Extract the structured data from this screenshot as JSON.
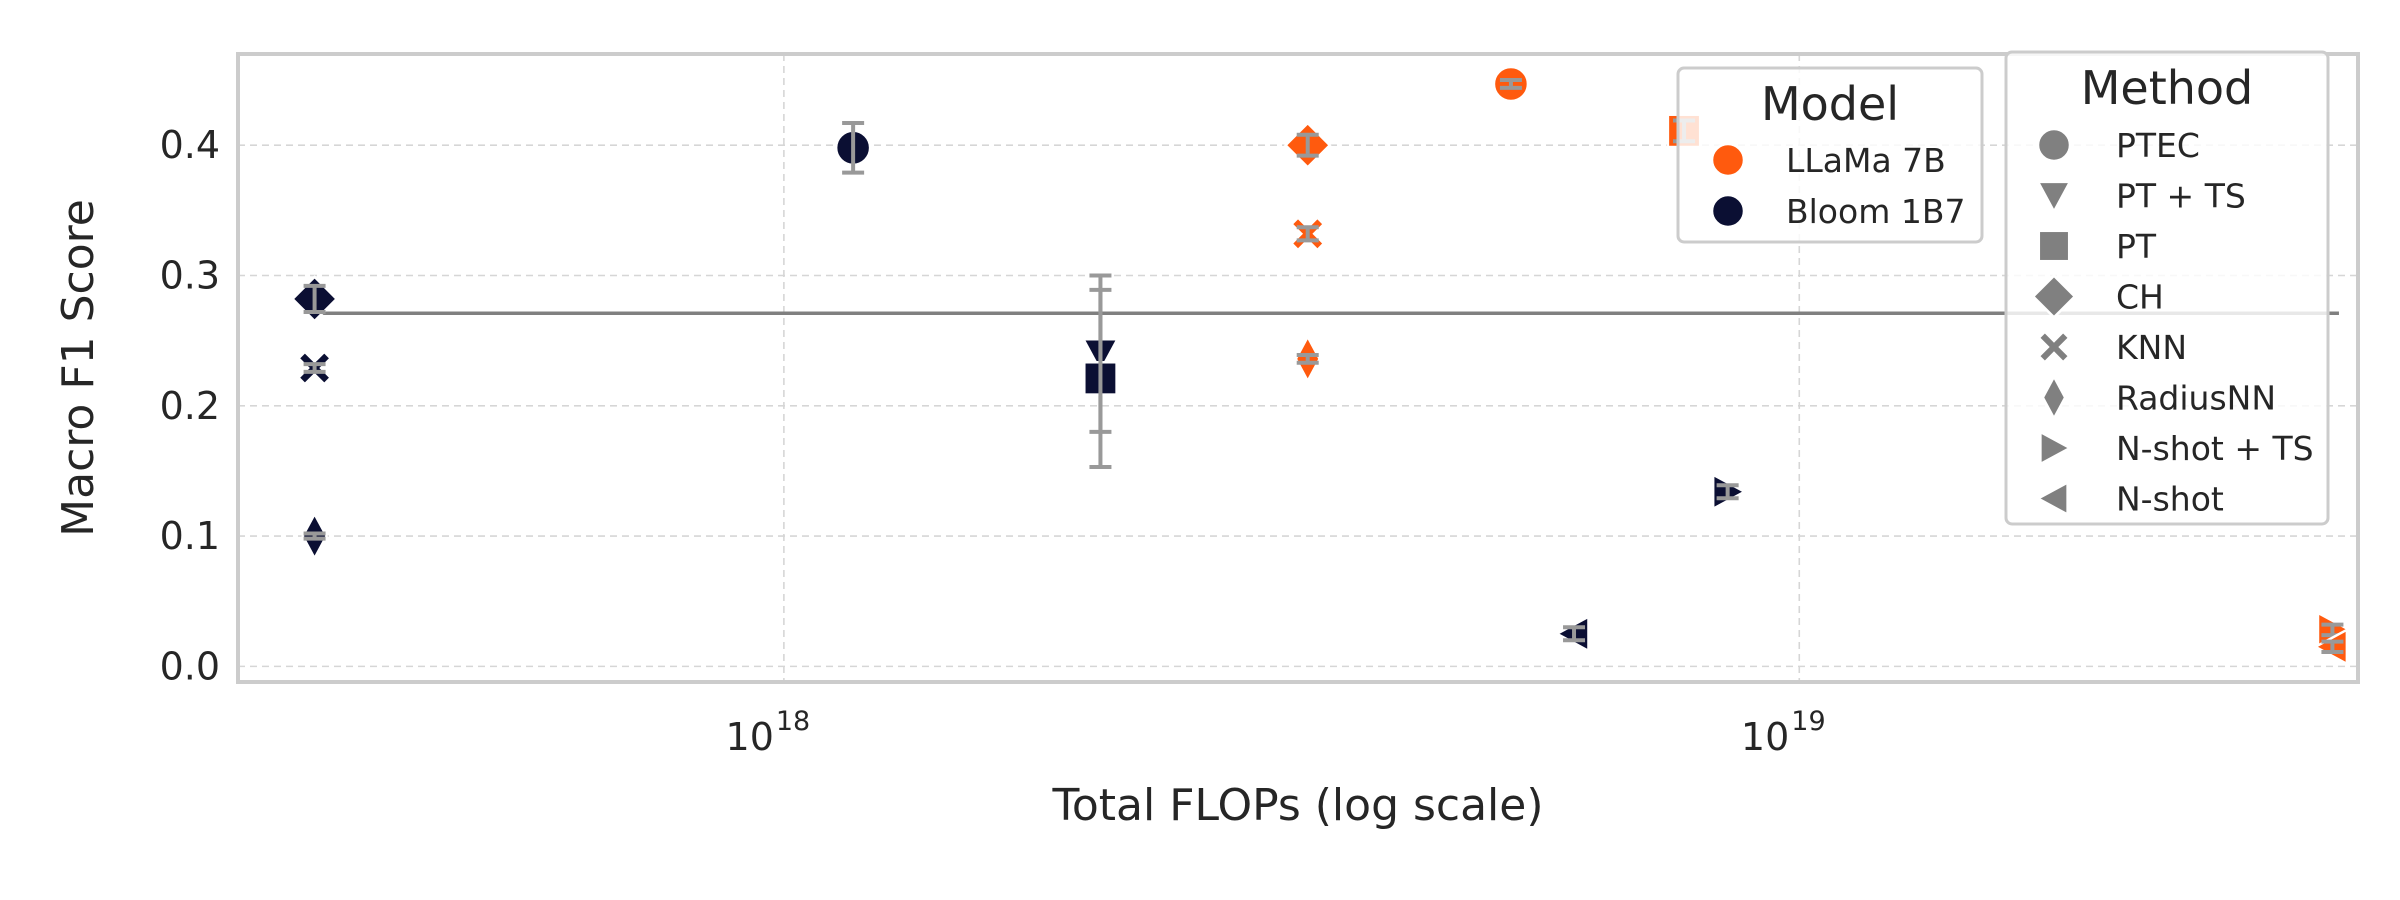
{
  "chart_data": {
    "type": "scatter",
    "title": "",
    "xlabel": "Total FLOPs (log scale)",
    "ylabel": "Macro F1 Score",
    "x_scale": "log",
    "xlim": [
      2.9e+17,
      3.55e+19
    ],
    "ylim": [
      -0.012,
      0.47
    ],
    "x_ticks": [
      {
        "value": 1e+18,
        "base": "10",
        "exp": "18"
      },
      {
        "value": 1e+19,
        "base": "10",
        "exp": "19"
      }
    ],
    "y_ticks": [
      {
        "value": 0.0,
        "label": "0.0"
      },
      {
        "value": 0.1,
        "label": "0.1"
      },
      {
        "value": 0.2,
        "label": "0.2"
      },
      {
        "value": 0.3,
        "label": "0.3"
      },
      {
        "value": 0.4,
        "label": "0.4"
      }
    ],
    "grid": true,
    "reference_line": {
      "y": 0.271,
      "x_from": 3.4e+17,
      "x_to": 3.4e+19,
      "color": "#808080"
    },
    "model_colors": {
      "LLaMa 7B": "#ff5a0e",
      "Bloom 1B7": "#0b0f33"
    },
    "error_color": "#999999",
    "points": [
      {
        "model": "Bloom 1B7",
        "method": "CH",
        "x": 3.45e+17,
        "y": 0.282,
        "err": 0.01
      },
      {
        "model": "Bloom 1B7",
        "method": "KNN",
        "x": 3.45e+17,
        "y": 0.229,
        "err": 0.003
      },
      {
        "model": "Bloom 1B7",
        "method": "RadiusNN",
        "x": 3.45e+17,
        "y": 0.1,
        "err": 0.002
      },
      {
        "model": "Bloom 1B7",
        "method": "PTEC",
        "x": 1.17e+18,
        "y": 0.398,
        "err": 0.019
      },
      {
        "model": "Bloom 1B7",
        "method": "PT + TS",
        "x": 2.05e+18,
        "y": 0.24,
        "err": 0.06
      },
      {
        "model": "Bloom 1B7",
        "method": "PT",
        "x": 2.05e+18,
        "y": 0.221,
        "err": 0.068
      },
      {
        "model": "LLaMa 7B",
        "method": "CH",
        "x": 3.28e+18,
        "y": 0.4,
        "err": 0.008
      },
      {
        "model": "LLaMa 7B",
        "method": "KNN",
        "x": 3.28e+18,
        "y": 0.332,
        "err": 0.005
      },
      {
        "model": "LLaMa 7B",
        "method": "RadiusNN",
        "x": 3.28e+18,
        "y": 0.236,
        "err": 0.003
      },
      {
        "model": "LLaMa 7B",
        "method": "PTEC",
        "x": 5.2e+18,
        "y": 0.447,
        "err": 0.003
      },
      {
        "model": "LLaMa 7B",
        "method": "PT",
        "x": 7.7e+18,
        "y": 0.411,
        "err": 0.008
      },
      {
        "model": "Bloom 1B7",
        "method": "N-shot",
        "x": 6e+18,
        "y": 0.025,
        "err": 0.005
      },
      {
        "model": "Bloom 1B7",
        "method": "N-shot + TS",
        "x": 8.5e+18,
        "y": 0.134,
        "err": 0.005
      },
      {
        "model": "LLaMa 7B",
        "method": "N-shot + TS",
        "x": 3.35e+19,
        "y": 0.028,
        "err": 0.004
      },
      {
        "model": "LLaMa 7B",
        "method": "N-shot",
        "x": 3.35e+19,
        "y": 0.015,
        "err": 0.004
      }
    ],
    "legends": [
      {
        "title": "Model",
        "entries": [
          {
            "label": "LLaMa 7B",
            "marker": "PTEC",
            "color": "#ff5a0e"
          },
          {
            "label": "Bloom 1B7",
            "marker": "PTEC",
            "color": "#0b0f33"
          }
        ]
      },
      {
        "title": "Method",
        "entries": [
          {
            "label": "PTEC",
            "marker": "PTEC",
            "color": "#808080"
          },
          {
            "label": "PT + TS",
            "marker": "PT + TS",
            "color": "#808080"
          },
          {
            "label": "PT",
            "marker": "PT",
            "color": "#808080"
          },
          {
            "label": "CH",
            "marker": "CH",
            "color": "#808080"
          },
          {
            "label": "KNN",
            "marker": "KNN",
            "color": "#808080"
          },
          {
            "label": "RadiusNN",
            "marker": "RadiusNN",
            "color": "#808080"
          },
          {
            "label": "N-shot + TS",
            "marker": "N-shot + TS",
            "color": "#808080"
          },
          {
            "label": "N-shot",
            "marker": "N-shot",
            "color": "#808080"
          }
        ]
      }
    ],
    "legend_placement": "top-right"
  }
}
